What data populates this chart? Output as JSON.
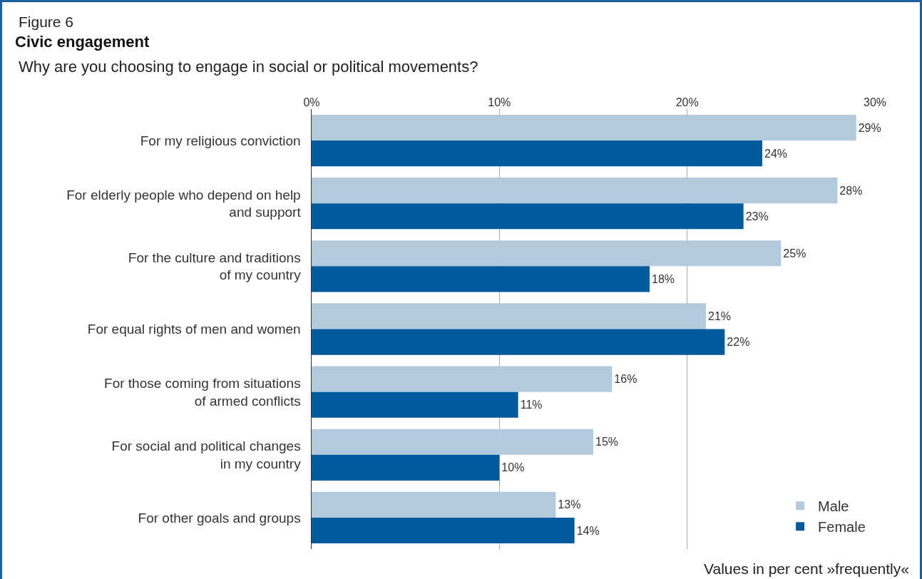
{
  "chart_data": {
    "type": "bar",
    "orientation": "horizontal",
    "title": "Civic engagement",
    "subtitle": "Why are you choosing to engage in social or political movements?",
    "annotations": [
      "Figure 6",
      "Values in per cent »frequently«"
    ],
    "categories": [
      "For my religious conviction",
      "For elderly people who depend on help\nand support",
      "For the culture and traditions\nof my country",
      "For equal rights of men and women",
      "For those coming from situations\nof armed conflicts",
      "For social and political changes\nin my country",
      "For other goals and groups"
    ],
    "series": [
      {
        "name": "Male",
        "color": "#b3cadd",
        "values": [
          29,
          28,
          25,
          21,
          16,
          15,
          13
        ],
        "value_labels": [
          "29%",
          "28%",
          "25%",
          "21%",
          "16%",
          "15%",
          "13%"
        ]
      },
      {
        "name": "Female",
        "color": "#005a9c",
        "values": [
          24,
          23,
          18,
          22,
          11,
          10,
          14
        ],
        "value_labels": [
          "24%",
          "23%",
          "18%",
          "22%",
          "11%",
          "10%",
          "14%"
        ]
      }
    ],
    "xlim": [
      0,
      30
    ],
    "xticks": [
      {
        "value": 0,
        "label": "0%"
      },
      {
        "value": 10,
        "label": "10%"
      },
      {
        "value": 20,
        "label": "20%"
      },
      {
        "value": 30,
        "label": "30%"
      }
    ],
    "grid": "x",
    "legend": "bottom right"
  }
}
